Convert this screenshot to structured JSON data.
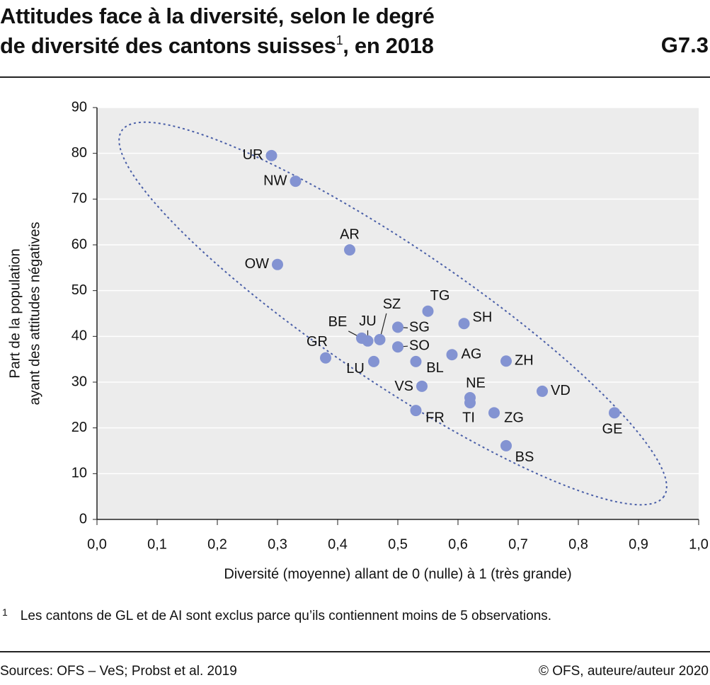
{
  "chart_data": {
    "type": "scatter",
    "title_line1": "Attitudes face à la diversité, selon le degré",
    "title_line2": "de diversité des cantons suisses",
    "title_note_mark": "1",
    "title_line2_end": ", en 2018",
    "chart_code": "G7.3",
    "x_label": "Diversité (moyenne) allant de 0 (nulle) à 1 (très grande)",
    "y_label_line1": "Part de la population",
    "y_label_line2": "ayant des attitudes négatives",
    "color": "#8393d2",
    "labels": [
      "UR",
      "NW",
      "AR",
      "OW",
      "TG",
      "SH",
      "SG",
      "SZ",
      "JU",
      "BE",
      "SO",
      "AG",
      "ZH",
      "GR",
      "LU",
      "BL",
      "VS",
      "NE",
      "TI",
      "VD",
      "GE",
      "ZG",
      "FR",
      "BS"
    ],
    "x": [
      0.29,
      0.33,
      0.42,
      0.3,
      0.55,
      0.61,
      0.5,
      0.47,
      0.45,
      0.44,
      0.5,
      0.59,
      0.68,
      0.38,
      0.46,
      0.53,
      0.54,
      0.62,
      0.62,
      0.74,
      0.86,
      0.66,
      0.53,
      0.68
    ],
    "y": [
      79.5,
      73.9,
      58.9,
      55.7,
      45.5,
      42.8,
      42.0,
      39.3,
      39.0,
      39.6,
      37.7,
      36.0,
      34.6,
      35.3,
      34.5,
      34.5,
      29.1,
      26.6,
      25.5,
      28.0,
      23.3,
      23.3,
      23.8,
      16.1
    ],
    "xlim": [
      0,
      1
    ],
    "ylim": [
      0,
      90
    ],
    "xticks": [
      {
        "value": 0,
        "label": "0,0"
      },
      {
        "value": 0.1,
        "label": "0,1"
      },
      {
        "value": 0.2,
        "label": "0,2"
      },
      {
        "value": 0.3,
        "label": "0,3"
      },
      {
        "value": 0.4,
        "label": "0,4"
      },
      {
        "value": 0.5,
        "label": "0,5"
      },
      {
        "value": 0.6,
        "label": "0,6"
      },
      {
        "value": 0.7,
        "label": "0,7"
      },
      {
        "value": 0.8,
        "label": "0,8"
      },
      {
        "value": 0.9,
        "label": "0,9"
      },
      {
        "value": 1,
        "label": "1,0"
      }
    ],
    "yticks": [
      0,
      10,
      20,
      30,
      40,
      50,
      60,
      70,
      80,
      90
    ],
    "grid": true
  },
  "footnote": {
    "mark": "1",
    "text": "Les cantons de GL et de AI sont exclus parce qu’ils contiennent moins de 5 observations."
  },
  "sources": "Sources: OFS – VeS; Probst et al. 2019",
  "copyright": "© OFS, auteure/auteur 2020"
}
